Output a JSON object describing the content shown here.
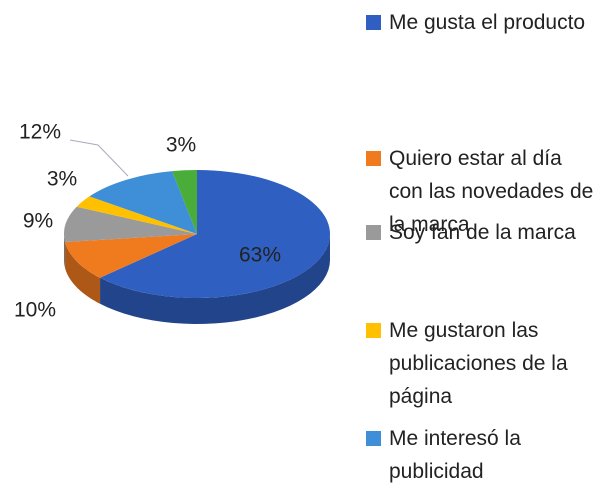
{
  "chart_data": {
    "type": "pie",
    "categories": [
      "Me gusta el producto",
      "Quiero estar al día con las novedades de la marca",
      "Soy fan de la marca",
      "Me gustaron las publicaciones de la página",
      "Me interesó la publicidad",
      null
    ],
    "values": [
      63,
      10,
      9,
      3,
      12,
      3
    ],
    "value_labels": [
      "63%",
      "10%",
      "9%",
      "3%",
      "12%",
      "3%"
    ],
    "colors": [
      "#2f5fc0",
      "#f07a1e",
      "#9a9a9a",
      "#ffc000",
      "#3f8fd8",
      "#4aad3a"
    ]
  }
}
